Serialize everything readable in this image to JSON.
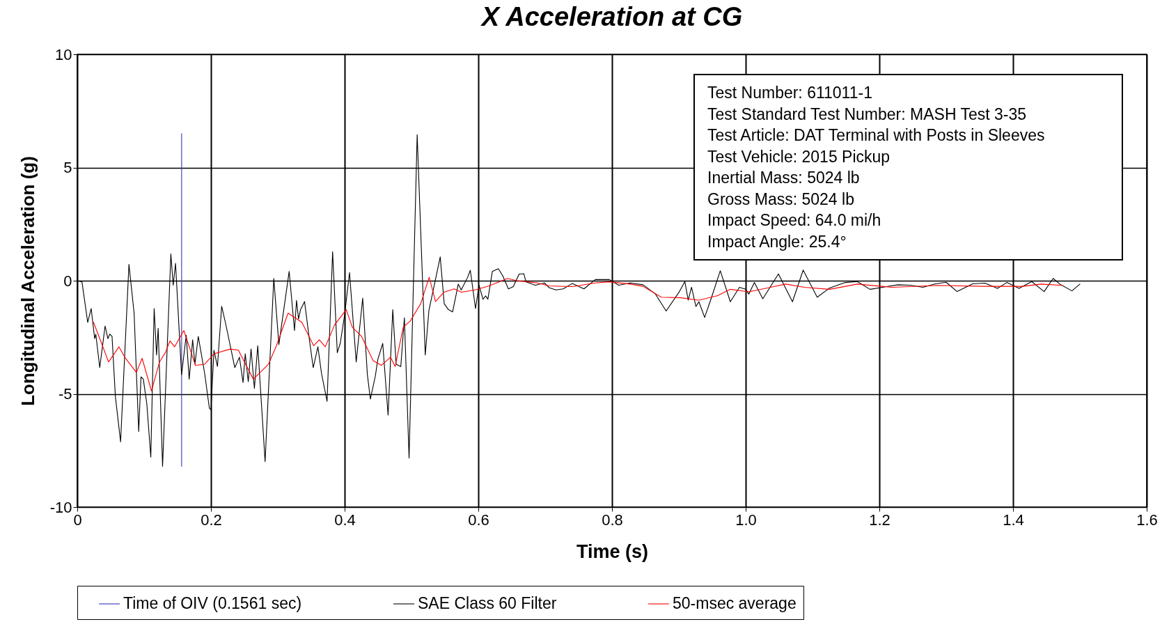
{
  "chart_data": {
    "type": "line",
    "title": "X Acceleration at CG",
    "xlabel": "Time (s)",
    "ylabel": "Longitudinal Acceleration (g)",
    "xlim": [
      0,
      1.6
    ],
    "xticks": [
      0,
      0.2,
      0.4,
      0.6,
      0.8,
      {
        "value": 1,
        "label": "1.0"
      },
      1.2,
      1.4,
      1.6
    ],
    "ylim": [
      -10,
      10
    ],
    "yticks": [
      -10,
      -5,
      0,
      5,
      10
    ],
    "grid": true,
    "legend": "bottom",
    "annotations": [
      "Test Number: 611011-1",
      "Test Standard Test Number: MASH Test 3-35",
      "Test Article: DAT Terminal with Posts in Sleeves",
      "Test Vehicle: 2015 Pickup",
      "Inertial Mass: 5024 lb",
      "Gross Mass: 5024 lb",
      "Impact Speed: 64.0 mi/h",
      "Impact Angle: 25.4°"
    ],
    "series": [
      {
        "name": "Time of OIV (0.1561 sec)",
        "color": "#3333bb",
        "x": [
          0.1561,
          0.1561
        ],
        "values": [
          -8.2,
          6.5
        ]
      },
      {
        "name": "SAE Class 60 Filter",
        "color": "#000000",
        "x": [
          0,
          0.007,
          0.0156,
          0.0208,
          0.026,
          0.0277,
          0.0336,
          0.0416,
          0.0458,
          0.0485,
          0.052,
          0.057,
          0.0648,
          0.0773,
          0.085,
          0.0919,
          0.0953,
          0.0988,
          0.104,
          0.11,
          0.115,
          0.1186,
          0.121,
          0.1276,
          0.14,
          0.1435,
          0.147,
          0.156,
          0.163,
          0.1674,
          0.1726,
          0.176,
          0.181,
          0.1906,
          0.1976,
          0.2,
          0.2045,
          0.2097,
          0.216,
          0.222,
          0.2357,
          0.2426,
          0.248,
          0.2513,
          0.2558,
          0.26,
          0.265,
          0.27,
          0.281,
          0.294,
          0.3016,
          0.317,
          0.325,
          0.328,
          0.331,
          0.334,
          0.34,
          0.348,
          0.353,
          0.36,
          0.3654,
          0.3737,
          0.382,
          0.389,
          0.3934,
          0.4,
          0.4073,
          0.4173,
          0.427,
          0.434,
          0.4385,
          0.446,
          0.4496,
          0.457,
          0.465,
          0.472,
          0.477,
          0.484,
          0.4894,
          0.4964,
          0.5085,
          0.5206,
          0.526,
          0.543,
          0.549,
          0.5553,
          0.5615,
          0.57,
          0.5744,
          0.584,
          0.588,
          0.5958,
          0.601,
          0.607,
          0.611,
          0.6143,
          0.621,
          0.63,
          0.6368,
          0.645,
          0.6523,
          0.661,
          0.668,
          0.6714,
          0.6853,
          0.699,
          0.706,
          0.716,
          0.727,
          0.7407,
          0.758,
          0.775,
          0.796,
          0.81,
          0.8274,
          0.8465,
          0.865,
          0.881,
          0.9,
          0.909,
          0.914,
          0.919,
          0.9256,
          0.93,
          0.9386,
          0.949,
          0.962,
          0.977,
          0.9907,
          1.0,
          1.0047,
          1.013,
          1.0256,
          1.049,
          1.07,
          1.086,
          1.107,
          1.1256,
          1.149,
          1.167,
          1.186,
          1.2047,
          1.228,
          1.2465,
          1.265,
          1.284,
          1.3,
          1.3163,
          1.3395,
          1.358,
          1.3767,
          1.3907,
          1.409,
          1.428,
          1.4465,
          1.46,
          1.47,
          1.488,
          1.5
        ],
        "values": [
          0,
          -0.05,
          -1.84,
          -1.23,
          -2.56,
          -2.36,
          -3.84,
          -2.0,
          -2.56,
          -2.36,
          -2.46,
          -5.12,
          -7.12,
          0.72,
          -1.43,
          -6.66,
          -4.25,
          -4.35,
          -5.43,
          -7.79,
          -1.23,
          -3.28,
          -2.1,
          -8.2,
          1.18,
          -0.2,
          0.77,
          -4.15,
          -2.41,
          -4.35,
          -2.61,
          -3.69,
          -2.46,
          -4.1,
          -5.63,
          -5.7,
          -3.07,
          -3.79,
          -1.13,
          -1.9,
          -3.84,
          -3.38,
          -4.5,
          -3.23,
          -4.46,
          -3.02,
          -4.76,
          -2.87,
          -7.99,
          0.1,
          -2.82,
          0.41,
          -2.2,
          -0.87,
          -1.69,
          -1.28,
          -0.92,
          -2.77,
          -3.84,
          -2.92,
          -4.1,
          -5.33,
          1.28,
          -3.18,
          -2.77,
          -1.5,
          0.36,
          -3.59,
          -0.77,
          -4.15,
          -5.23,
          -4.2,
          -3.48,
          -2.77,
          -5.94,
          -1.28,
          -3.69,
          -3.79,
          -1.64,
          -7.84,
          6.45,
          -3.28,
          -1.33,
          1.05,
          -1.02,
          -1.28,
          -1.38,
          -0.15,
          -0.41,
          0.15,
          0.46,
          -1.23,
          -0.2,
          -0.82,
          -0.67,
          -0.82,
          0.41,
          0.53,
          0.2,
          -0.36,
          -0.26,
          0.29,
          0.31,
          -0.05,
          -0.2,
          -0.1,
          -0.31,
          -0.41,
          -0.36,
          -0.12,
          -0.36,
          0.05,
          0.05,
          -0.2,
          -0.1,
          -0.18,
          -0.59,
          -1.34,
          -0.52,
          -0.04,
          -0.86,
          -0.29,
          -1.14,
          -0.93,
          -1.62,
          -0.73,
          0.44,
          -0.93,
          -0.29,
          -0.38,
          -0.59,
          -0.08,
          -0.8,
          0.3,
          -0.93,
          0.47,
          -0.73,
          -0.32,
          -0.08,
          -0.04,
          -0.38,
          -0.29,
          -0.18,
          -0.2,
          -0.29,
          -0.14,
          -0.07,
          -0.48,
          -0.14,
          -0.11,
          -0.34,
          -0.08,
          -0.34,
          -0.04,
          -0.48,
          0.1,
          -0.15,
          -0.45,
          -0.15
        ]
      },
      {
        "name": "50-msec average",
        "color": "#ff0000",
        "x": [
          0.0243,
          0.0364,
          0.0468,
          0.0624,
          0.071,
          0.0884,
          0.097,
          0.111,
          0.123,
          0.1317,
          0.1386,
          0.1456,
          0.1594,
          0.1768,
          0.1906,
          0.2045,
          0.2288,
          0.241,
          0.2634,
          0.286,
          0.298,
          0.3154,
          0.336,
          0.3536,
          0.362,
          0.371,
          0.385,
          0.4024,
          0.4114,
          0.4253,
          0.4426,
          0.4548,
          0.4686,
          0.4756,
          0.4877,
          0.498,
          0.5137,
          0.5265,
          0.536,
          0.5484,
          0.564,
          0.5744,
          0.595,
          0.616,
          0.6437,
          0.6575,
          0.6887,
          0.706,
          0.7407,
          0.775,
          0.796,
          0.8274,
          0.8465,
          0.874,
          0.902,
          0.93,
          0.958,
          0.977,
          1.0047,
          1.037,
          1.06,
          1.088,
          1.1256,
          1.167,
          1.219,
          1.288,
          1.358,
          1.414,
          1.442,
          1.474
        ],
        "values": [
          -1.84,
          -2.77,
          -3.59,
          -2.92,
          -3.38,
          -4.05,
          -3.43,
          -4.87,
          -3.59,
          -3.18,
          -2.66,
          -2.92,
          -2.2,
          -3.74,
          -3.69,
          -3.23,
          -3.02,
          -3.07,
          -4.35,
          -3.69,
          -2.87,
          -1.43,
          -1.84,
          -2.87,
          -2.61,
          -2.92,
          -1.95,
          -1.28,
          -2.05,
          -2.46,
          -3.53,
          -3.74,
          -3.38,
          -3.79,
          -2.05,
          -1.79,
          -1.02,
          0.15,
          -0.92,
          -0.51,
          -0.36,
          -0.51,
          -0.41,
          -0.23,
          0.1,
          0,
          -0.1,
          -0.23,
          -0.26,
          -0.1,
          -0.05,
          -0.15,
          -0.25,
          -0.73,
          -0.75,
          -0.86,
          -0.66,
          -0.38,
          -0.49,
          -0.29,
          -0.15,
          -0.29,
          -0.38,
          -0.15,
          -0.29,
          -0.21,
          -0.25,
          -0.25,
          -0.15,
          -0.21
        ]
      }
    ]
  }
}
